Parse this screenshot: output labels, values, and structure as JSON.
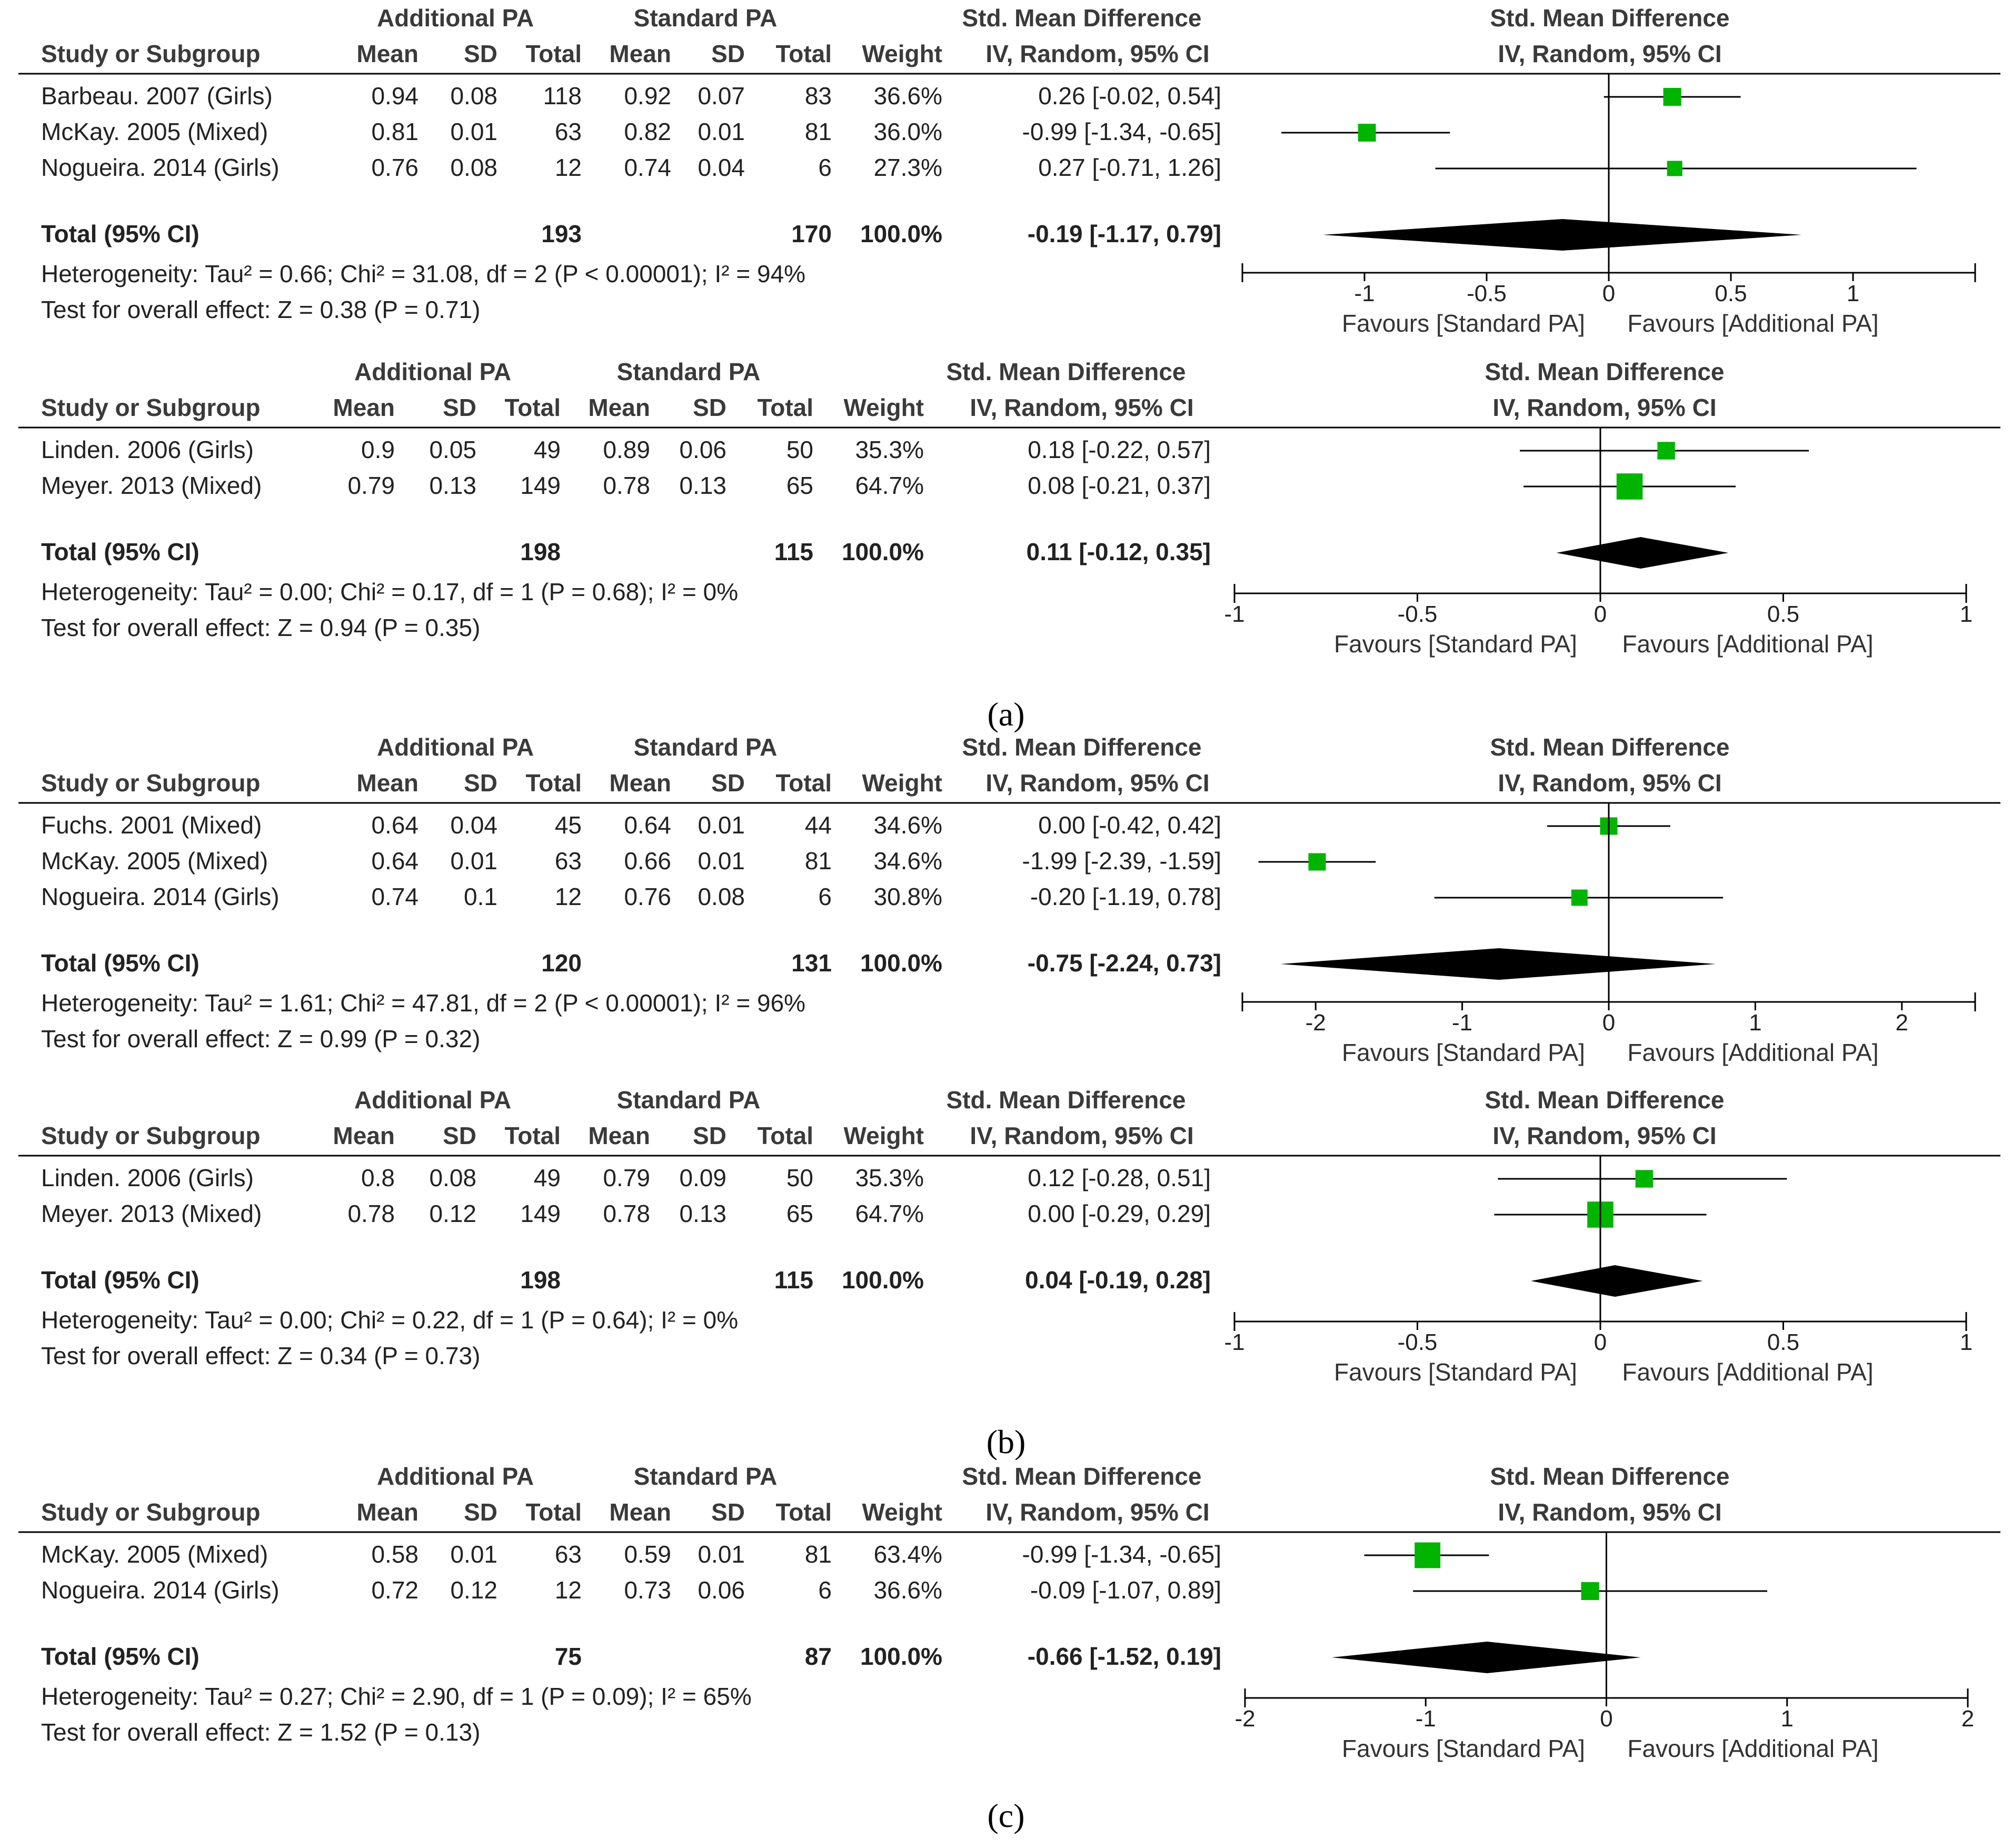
{
  "chart_data": [
    {
      "type": "forest",
      "header": {
        "group1": "Additional PA",
        "group2": "Standard PA",
        "smd": "Std. Mean Difference",
        "method": "IV, Random, 95% CI",
        "study": "Study or Subgroup",
        "mean": "Mean",
        "sd": "SD",
        "total": "Total",
        "weight": "Weight"
      },
      "studies": [
        {
          "name": "Barbeau. 2007 (Girls)",
          "m1": "0.94",
          "sd1": "0.08",
          "n1": "118",
          "m2": "0.92",
          "sd2": "0.07",
          "n2": "83",
          "weight": "36.6%",
          "ci": "0.26 [-0.02, 0.54]",
          "est": 0.26,
          "lo": -0.02,
          "hi": 0.54,
          "w": 36.6
        },
        {
          "name": "McKay. 2005 (Mixed)",
          "m1": "0.81",
          "sd1": "0.01",
          "n1": "63",
          "m2": "0.82",
          "sd2": "0.01",
          "n2": "81",
          "weight": "36.0%",
          "ci": "-0.99 [-1.34, -0.65]",
          "est": -0.99,
          "lo": -1.34,
          "hi": -0.65,
          "w": 36.0
        },
        {
          "name": "Nogueira. 2014 (Girls)",
          "m1": "0.76",
          "sd1": "0.08",
          "n1": "12",
          "m2": "0.74",
          "sd2": "0.04",
          "n2": "6",
          "weight": "27.3%",
          "ci": "0.27 [-0.71, 1.26]",
          "est": 0.27,
          "lo": -0.71,
          "hi": 1.26,
          "w": 27.3
        }
      ],
      "total": {
        "label": "Total (95% CI)",
        "n1": "193",
        "n2": "170",
        "weight": "100.0%",
        "ci": "-0.19 [-1.17, 0.79]",
        "est": -0.19,
        "lo": -1.17,
        "hi": 0.79
      },
      "heterogeneity": "Heterogeneity: Tau² = 0.66; Chi² = 31.08, df = 2 (P < 0.00001); I² = 94%",
      "overall": "Test for overall effect: Z = 0.38 (P = 0.71)",
      "xlim": [
        -1.5,
        1.5
      ],
      "ticks": [
        -1,
        -0.5,
        0,
        0.5,
        1
      ],
      "tick_labels": [
        "-1",
        "-0.5",
        "0",
        "0.5",
        "1"
      ],
      "favours_left": "Favours [Standard PA]",
      "favours_right": "Favours [Additional PA]"
    },
    {
      "type": "forest",
      "header": {
        "group1": "Additional PA",
        "group2": "Standard PA",
        "smd": "Std. Mean Difference",
        "method": "IV, Random, 95% CI",
        "study": "Study or Subgroup",
        "mean": "Mean",
        "sd": "SD",
        "total": "Total",
        "weight": "Weight"
      },
      "studies": [
        {
          "name": "Linden. 2006 (Girls)",
          "m1": "0.9",
          "sd1": "0.05",
          "n1": "49",
          "m2": "0.89",
          "sd2": "0.06",
          "n2": "50",
          "weight": "35.3%",
          "ci": "0.18 [-0.22, 0.57]",
          "est": 0.18,
          "lo": -0.22,
          "hi": 0.57,
          "w": 35.3
        },
        {
          "name": "Meyer. 2013 (Mixed)",
          "m1": "0.79",
          "sd1": "0.13",
          "n1": "149",
          "m2": "0.78",
          "sd2": "0.13",
          "n2": "65",
          "weight": "64.7%",
          "ci": "0.08 [-0.21, 0.37]",
          "est": 0.08,
          "lo": -0.21,
          "hi": 0.37,
          "w": 64.7
        }
      ],
      "total": {
        "label": "Total (95% CI)",
        "n1": "198",
        "n2": "115",
        "weight": "100.0%",
        "ci": "0.11 [-0.12, 0.35]",
        "est": 0.11,
        "lo": -0.12,
        "hi": 0.35
      },
      "heterogeneity": "Heterogeneity: Tau² = 0.00; Chi² = 0.17, df = 1 (P = 0.68); I² = 0%",
      "overall": "Test for overall effect: Z = 0.94 (P = 0.35)",
      "xlim": [
        -1,
        1
      ],
      "ticks": [
        -1,
        -0.5,
        0,
        0.5,
        1
      ],
      "tick_labels": [
        "-1",
        "-0.5",
        "0",
        "0.5",
        "1"
      ],
      "favours_left": "Favours [Standard PA]",
      "favours_right": "Favours [Additional PA]"
    },
    {
      "type": "forest",
      "header": {
        "group1": "Additional PA",
        "group2": "Standard PA",
        "smd": "Std. Mean Difference",
        "method": "IV, Random, 95% CI",
        "study": "Study or Subgroup",
        "mean": "Mean",
        "sd": "SD",
        "total": "Total",
        "weight": "Weight"
      },
      "studies": [
        {
          "name": "Fuchs. 2001 (Mixed)",
          "m1": "0.64",
          "sd1": "0.04",
          "n1": "45",
          "m2": "0.64",
          "sd2": "0.01",
          "n2": "44",
          "weight": "34.6%",
          "ci": "0.00 [-0.42, 0.42]",
          "est": 0.0,
          "lo": -0.42,
          "hi": 0.42,
          "w": 34.6
        },
        {
          "name": "McKay. 2005 (Mixed)",
          "m1": "0.64",
          "sd1": "0.01",
          "n1": "63",
          "m2": "0.66",
          "sd2": "0.01",
          "n2": "81",
          "weight": "34.6%",
          "ci": "-1.99 [-2.39, -1.59]",
          "est": -1.99,
          "lo": -2.39,
          "hi": -1.59,
          "w": 34.6
        },
        {
          "name": "Nogueira. 2014 (Girls)",
          "m1": "0.74",
          "sd1": "0.1",
          "n1": "12",
          "m2": "0.76",
          "sd2": "0.08",
          "n2": "6",
          "weight": "30.8%",
          "ci": "-0.20 [-1.19, 0.78]",
          "est": -0.2,
          "lo": -1.19,
          "hi": 0.78,
          "w": 30.8
        }
      ],
      "total": {
        "label": "Total (95% CI)",
        "n1": "120",
        "n2": "131",
        "weight": "100.0%",
        "ci": "-0.75 [-2.24, 0.73]",
        "est": -0.75,
        "lo": -2.24,
        "hi": 0.73
      },
      "heterogeneity": "Heterogeneity: Tau² = 1.61; Chi² = 47.81, df = 2 (P < 0.00001); I² = 96%",
      "overall": "Test for overall effect: Z = 0.99 (P = 0.32)",
      "xlim": [
        -2.5,
        2.5
      ],
      "ticks": [
        -2,
        -1,
        0,
        1,
        2
      ],
      "tick_labels": [
        "-2",
        "-1",
        "0",
        "1",
        "2"
      ],
      "favours_left": "Favours [Standard PA]",
      "favours_right": "Favours [Additional PA]"
    },
    {
      "type": "forest",
      "header": {
        "group1": "Additional PA",
        "group2": "Standard PA",
        "smd": "Std. Mean Difference",
        "method": "IV, Random, 95% CI",
        "study": "Study or Subgroup",
        "mean": "Mean",
        "sd": "SD",
        "total": "Total",
        "weight": "Weight"
      },
      "studies": [
        {
          "name": "Linden. 2006 (Girls)",
          "m1": "0.8",
          "sd1": "0.08",
          "n1": "49",
          "m2": "0.79",
          "sd2": "0.09",
          "n2": "50",
          "weight": "35.3%",
          "ci": "0.12 [-0.28, 0.51]",
          "est": 0.12,
          "lo": -0.28,
          "hi": 0.51,
          "w": 35.3
        },
        {
          "name": "Meyer. 2013 (Mixed)",
          "m1": "0.78",
          "sd1": "0.12",
          "n1": "149",
          "m2": "0.78",
          "sd2": "0.13",
          "n2": "65",
          "weight": "64.7%",
          "ci": "0.00 [-0.29, 0.29]",
          "est": 0.0,
          "lo": -0.29,
          "hi": 0.29,
          "w": 64.7
        }
      ],
      "total": {
        "label": "Total (95% CI)",
        "n1": "198",
        "n2": "115",
        "weight": "100.0%",
        "ci": "0.04 [-0.19, 0.28]",
        "est": 0.04,
        "lo": -0.19,
        "hi": 0.28
      },
      "heterogeneity": "Heterogeneity: Tau² = 0.00; Chi² = 0.22, df = 1 (P = 0.64); I² = 0%",
      "overall": "Test for overall effect: Z = 0.34 (P = 0.73)",
      "xlim": [
        -1,
        1
      ],
      "ticks": [
        -1,
        -0.5,
        0,
        0.5,
        1
      ],
      "tick_labels": [
        "-1",
        "-0.5",
        "0",
        "0.5",
        "1"
      ],
      "favours_left": "Favours [Standard PA]",
      "favours_right": "Favours [Additional PA]"
    },
    {
      "type": "forest",
      "header": {
        "group1": "Additional PA",
        "group2": "Standard PA",
        "smd": "Std. Mean Difference",
        "method": "IV, Random, 95% CI",
        "study": "Study or Subgroup",
        "mean": "Mean",
        "sd": "SD",
        "total": "Total",
        "weight": "Weight"
      },
      "studies": [
        {
          "name": "McKay. 2005 (Mixed)",
          "m1": "0.58",
          "sd1": "0.01",
          "n1": "63",
          "m2": "0.59",
          "sd2": "0.01",
          "n2": "81",
          "weight": "63.4%",
          "ci": "-0.99 [-1.34, -0.65]",
          "est": -0.99,
          "lo": -1.34,
          "hi": -0.65,
          "w": 63.4
        },
        {
          "name": "Nogueira. 2014 (Girls)",
          "m1": "0.72",
          "sd1": "0.12",
          "n1": "12",
          "m2": "0.73",
          "sd2": "0.06",
          "n2": "6",
          "weight": "36.6%",
          "ci": "-0.09 [-1.07, 0.89]",
          "est": -0.09,
          "lo": -1.07,
          "hi": 0.89,
          "w": 36.6
        }
      ],
      "total": {
        "label": "Total (95% CI)",
        "n1": "75",
        "n2": "87",
        "weight": "100.0%",
        "ci": "-0.66 [-1.52, 0.19]",
        "est": -0.66,
        "lo": -1.52,
        "hi": 0.19
      },
      "heterogeneity": "Heterogeneity: Tau² = 0.27; Chi² = 2.90, df = 1 (P = 0.09); I² = 65%",
      "overall": "Test for overall effect: Z = 1.52 (P = 0.13)",
      "xlim": [
        -2,
        2
      ],
      "ticks": [
        -2,
        -1,
        0,
        1,
        2
      ],
      "tick_labels": [
        "-2",
        "-1",
        "0",
        "1",
        "2"
      ],
      "favours_left": "Favours [Standard PA]",
      "favours_right": "Favours [Additional PA]"
    }
  ],
  "panel_labels": [
    "(a)",
    "(b)",
    "(c)"
  ],
  "colors": {
    "marker": "#00b400",
    "diamond": "#000000",
    "line": "#000000"
  }
}
